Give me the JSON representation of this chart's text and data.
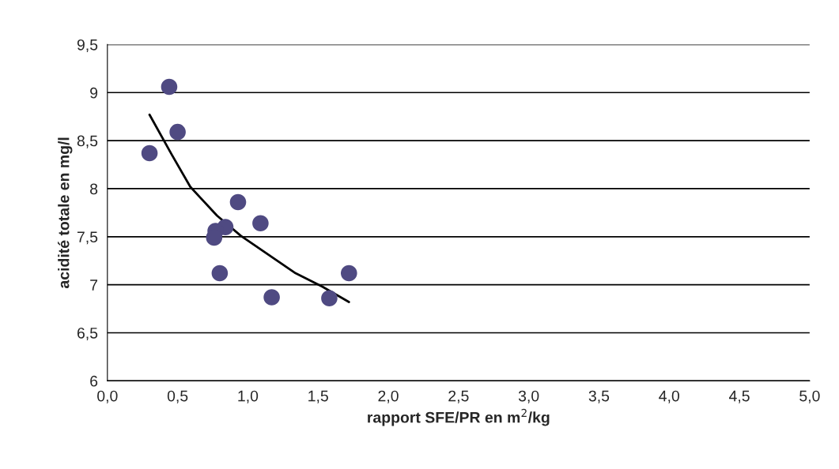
{
  "chart_data": {
    "type": "scatter",
    "xlabel": "rapport SFE/PR en m$^{2}$/kg",
    "ylabel": "acidité totale en mg/l",
    "xlim": [
      0,
      5
    ],
    "ylim": [
      6,
      9.5
    ],
    "xticks": [
      {
        "value": 0,
        "label": "0,0"
      },
      {
        "value": 0.5,
        "label": "0,5"
      },
      {
        "value": 1,
        "label": "1,0"
      },
      {
        "value": 1.5,
        "label": "1,5"
      },
      {
        "value": 2,
        "label": "2,0"
      },
      {
        "value": 2.5,
        "label": "2,5"
      },
      {
        "value": 3,
        "label": "3,0"
      },
      {
        "value": 3.5,
        "label": "3,5"
      },
      {
        "value": 4,
        "label": "4,0"
      },
      {
        "value": 4.5,
        "label": "4,5"
      },
      {
        "value": 5,
        "label": "5,0"
      }
    ],
    "yticks": [
      6,
      {
        "value": 6.5,
        "label": "6,5"
      },
      7,
      {
        "value": 7.5,
        "label": "7,5"
      },
      8,
      {
        "value": 8.5,
        "label": "8,5"
      },
      9,
      {
        "value": 9.5,
        "label": "9,5"
      }
    ],
    "grid": "y",
    "marker": "circle",
    "series": [
      {
        "color": "#4f4a82",
        "x": [
          0.44,
          0.5,
          0.3,
          0.93,
          1.09,
          0.84,
          0.77,
          0.76,
          0.8,
          1.72,
          1.17,
          1.58
        ],
        "values": [
          9.06,
          8.59,
          8.37,
          7.86,
          7.64,
          7.6,
          7.56,
          7.49,
          7.12,
          7.12,
          6.87,
          6.86
        ]
      },
      {
        "type": "line",
        "color": "#000000",
        "marker": "none",
        "x": [
          0.3,
          0.46,
          0.59,
          0.78,
          0.95,
          1.34,
          1.53,
          1.72
        ],
        "values": [
          8.77,
          8.35,
          8.02,
          7.72,
          7.51,
          7.12,
          6.98,
          6.82
        ]
      }
    ]
  }
}
